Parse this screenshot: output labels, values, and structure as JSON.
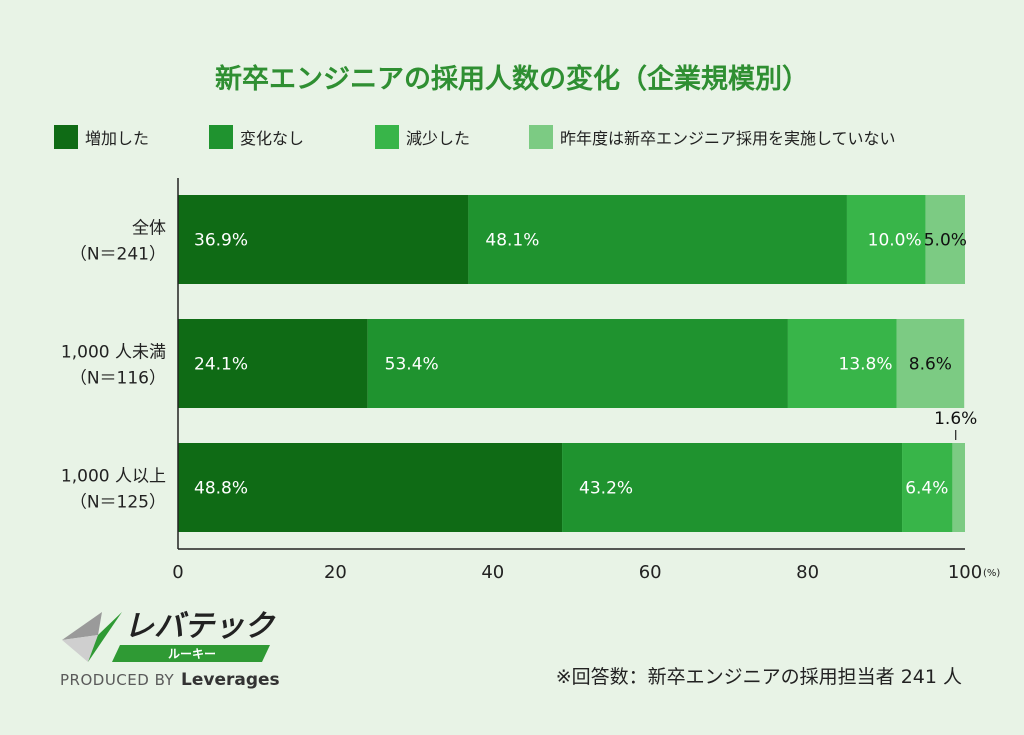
{
  "chart_data": {
    "type": "bar",
    "orientation": "horizontal",
    "stacked": true,
    "title": "新卒エンジニアの採用人数の変化（企業規模別）",
    "categories": [
      {
        "line1": "全体",
        "line2": "（N＝241）"
      },
      {
        "line1": "1,000 人未満",
        "line2": "（N＝116）"
      },
      {
        "line1": "1,000 人以上",
        "line2": "（N＝125）"
      }
    ],
    "series": [
      {
        "name": "増加した",
        "color": "#0f6b15",
        "values": [
          36.9,
          24.1,
          48.8
        ],
        "labels": [
          "36.9%",
          "24.1%",
          "48.8%"
        ]
      },
      {
        "name": "変化なし",
        "color": "#1f932f",
        "values": [
          48.1,
          53.4,
          43.2
        ],
        "labels": [
          "48.1%",
          "53.4%",
          "43.2%"
        ]
      },
      {
        "name": "減少した",
        "color": "#38b549",
        "values": [
          10.0,
          13.8,
          6.4
        ],
        "labels": [
          "10.0%",
          "13.8%",
          "6.4%"
        ]
      },
      {
        "name": "昨年度は新卒エンジニア採用を実施していない",
        "color": "#7ccb83",
        "values": [
          5.0,
          8.6,
          1.6
        ],
        "labels": [
          "5.0%",
          "8.6%",
          "1.6%"
        ]
      }
    ],
    "xlim": [
      0,
      100
    ],
    "xticks": [
      0,
      20,
      40,
      60,
      80,
      100
    ],
    "xunit": "(%)",
    "grid": false,
    "legend_position": "top"
  },
  "footer": {
    "note": "※回答数：新卒エンジニアの採用担当者 241 人"
  },
  "logo": {
    "name": "レバテック",
    "sub": "ルーキー",
    "produced_by": "PRODUCED BY",
    "company": "Leverages"
  }
}
